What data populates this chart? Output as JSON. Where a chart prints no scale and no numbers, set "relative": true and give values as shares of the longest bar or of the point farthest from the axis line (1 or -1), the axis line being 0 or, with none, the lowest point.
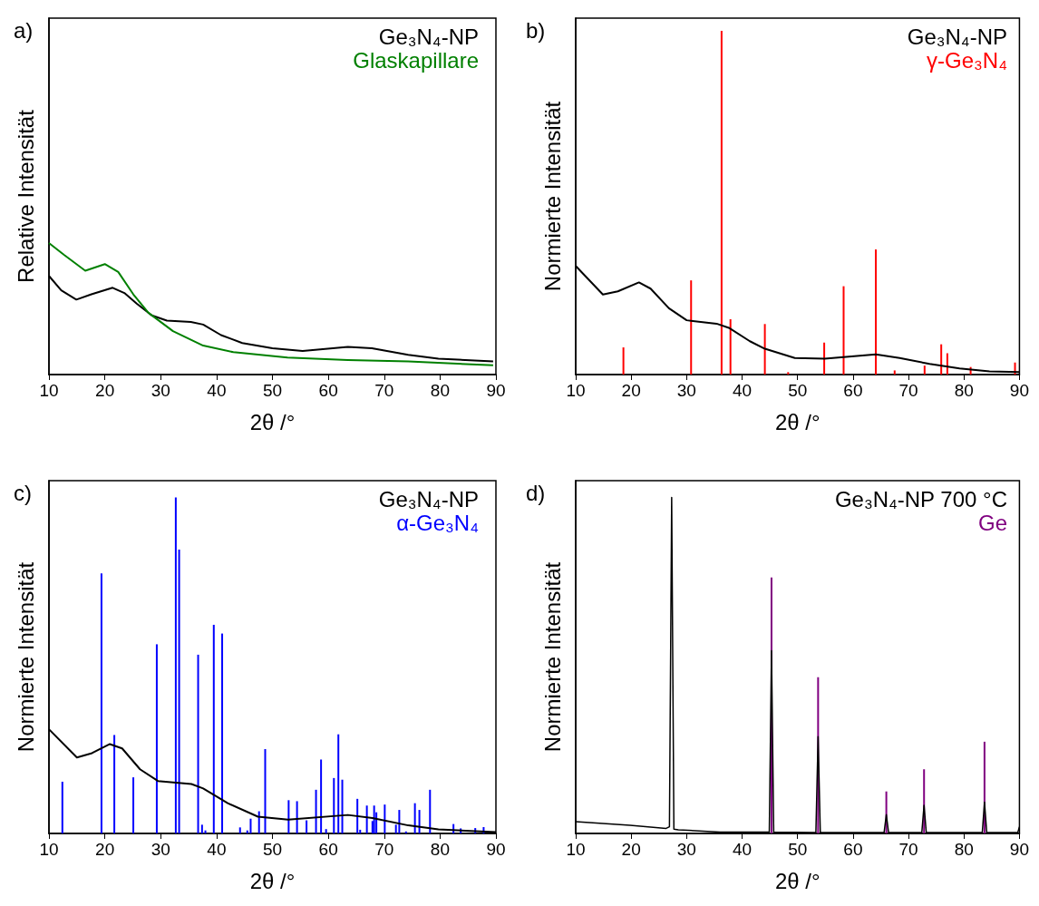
{
  "chart_data": [
    {
      "type": "line",
      "title": "a)",
      "xlabel": "2θ /°",
      "ylabel": "Relative Intensität",
      "xlim": [
        10,
        90
      ],
      "xticks": [
        10,
        20,
        30,
        40,
        50,
        60,
        70,
        80,
        90
      ],
      "relative": true,
      "legend": "top right",
      "series": [
        {
          "name": "Ge₃N₄-NP",
          "color": "#000000",
          "x": [
            10,
            12.2,
            14.9,
            17.6,
            21.4,
            23.5,
            25.7,
            28.4,
            31.1,
            35.4,
            37.6,
            40.8,
            44.6,
            50,
            55.4,
            63.5,
            67.8,
            74.3,
            79.7,
            89.5
          ],
          "values": [
            0.75,
            0.64,
            0.57,
            0.61,
            0.66,
            0.62,
            0.54,
            0.45,
            0.41,
            0.4,
            0.38,
            0.3,
            0.24,
            0.2,
            0.18,
            0.21,
            0.2,
            0.15,
            0.12,
            0.1
          ]
        },
        {
          "name": "Glaskapillare",
          "color": "#008000",
          "x": [
            10,
            12.7,
            16.5,
            20,
            22.4,
            25.1,
            27.8,
            32.2,
            37.6,
            43,
            52.7,
            63.5,
            74.3,
            89.5
          ],
          "values": [
            1,
            0.91,
            0.79,
            0.84,
            0.78,
            0.61,
            0.47,
            0.33,
            0.22,
            0.17,
            0.13,
            0.11,
            0.1,
            0.07
          ]
        }
      ]
    },
    {
      "type": "line",
      "title": "b)",
      "xlabel": "2θ /°",
      "ylabel": "Normierte Intensität",
      "xlim": [
        10,
        90
      ],
      "xticks": [
        10,
        20,
        30,
        40,
        50,
        60,
        70,
        80,
        90
      ],
      "relative": true,
      "legend": "top right",
      "series": [
        {
          "name": "Ge₃N₄-NP",
          "color": "#000000",
          "x": [
            10,
            14.9,
            17.6,
            21.4,
            23.5,
            26.8,
            30,
            35.4,
            37.6,
            41.4,
            44.1,
            49.5,
            54.9,
            64.1,
            68.4,
            73.8,
            79.2,
            84.6,
            90
          ],
          "values": [
            0.316,
            0.233,
            0.242,
            0.268,
            0.25,
            0.193,
            0.158,
            0.148,
            0.136,
            0.097,
            0.075,
            0.048,
            0.046,
            0.059,
            0.048,
            0.031,
            0.018,
            0.009,
            0.007
          ]
        },
        {
          "name": "γ-Ge₃N₄",
          "type": "bar",
          "color": "#ff0000",
          "x": [
            18.6,
            30.8,
            36.3,
            37.9,
            44.1,
            48.3,
            54.8,
            58.3,
            64.1,
            67.5,
            72.9,
            75.9,
            77.0,
            81.2,
            89.2
          ],
          "values": [
            0.079,
            0.274,
            1,
            0.161,
            0.147,
            0.007,
            0.093,
            0.257,
            0.364,
            0.012,
            0.026,
            0.088,
            0.062,
            0.022,
            0.035
          ]
        }
      ]
    },
    {
      "type": "line",
      "title": "c)",
      "xlabel": "2θ /°",
      "ylabel": "Normierte Intensität",
      "xlim": [
        10,
        90
      ],
      "xticks": [
        10,
        20,
        30,
        40,
        50,
        60,
        70,
        80,
        90
      ],
      "relative": true,
      "legend": "top right",
      "series": [
        {
          "name": "Ge₃N₄-NP",
          "color": "#000000",
          "x": [
            10,
            15,
            17.7,
            20.9,
            23.1,
            26.3,
            29.5,
            35.5,
            37.6,
            42,
            47.4,
            52.8,
            63.5,
            67.9,
            74.3,
            79.7,
            90
          ],
          "values": [
            0.31,
            0.226,
            0.239,
            0.266,
            0.253,
            0.191,
            0.156,
            0.147,
            0.134,
            0.09,
            0.05,
            0.041,
            0.055,
            0.046,
            0.024,
            0.012,
            0.004
          ]
        },
        {
          "name": "α-Ge₃N₄",
          "type": "bar",
          "color": "#0000ff",
          "x": [
            12.4,
            19.4,
            21.7,
            25.1,
            29.3,
            32.7,
            33.3,
            36.7,
            37.4,
            38.0,
            39.5,
            41.0,
            44.2,
            45.5,
            46.1,
            47.6,
            48.7,
            52.9,
            54.4,
            56.1,
            57.8,
            58.7,
            59.6,
            61.0,
            61.8,
            62.5,
            65.2,
            65.7,
            66.9,
            67.9,
            68.2,
            68.6,
            70.1,
            72.1,
            72.7,
            73.9,
            75.5,
            76.3,
            78.2,
            82.4,
            83.7,
            86.3,
            87.8
          ],
          "values": [
            0.154,
            0.774,
            0.293,
            0.167,
            0.563,
            1,
            0.845,
            0.532,
            0.026,
            0.009,
            0.621,
            0.595,
            0.018,
            0.009,
            0.044,
            0.066,
            0.251,
            0.099,
            0.096,
            0.039,
            0.13,
            0.22,
            0.013,
            0.165,
            0.295,
            0.16,
            0.103,
            0.011,
            0.083,
            0.037,
            0.083,
            0.063,
            0.086,
            0.026,
            0.07,
            0.006,
            0.09,
            0.07,
            0.13,
            0.028,
            0.015,
            0.016,
            0.019
          ]
        }
      ]
    },
    {
      "type": "line",
      "title": "d)",
      "xlabel": "2θ /°",
      "ylabel": "Normierte Intensität",
      "xlim": [
        10,
        90
      ],
      "xticks": [
        10,
        20,
        30,
        40,
        50,
        60,
        70,
        80,
        90
      ],
      "relative": true,
      "legend": "top right",
      "series": [
        {
          "name": "Ge",
          "type": "bar",
          "color": "#800080",
          "x": [
            45.3,
            53.7,
            66.0,
            72.8,
            83.7
          ],
          "values": [
            0.762,
            0.465,
            0.125,
            0.191,
            0.273
          ]
        },
        {
          "name": "Ge₃N₄-NP 700 °C",
          "color": "#000000",
          "x": [
            10,
            19.8,
            26.3,
            26.9,
            27.3,
            27.7,
            28.5,
            36,
            44.9,
            45.3,
            45.7,
            53.3,
            53.7,
            54.1,
            65.6,
            66.0,
            66.4,
            72.4,
            72.8,
            73.2,
            83.3,
            83.7,
            84.1,
            89.7,
            90
          ],
          "values": [
            0.035,
            0.024,
            0.015,
            0.02,
            1,
            0.013,
            0.011,
            0.004,
            0.004,
            0.544,
            0.004,
            0.003,
            0.288,
            0.003,
            0.003,
            0.056,
            0.003,
            0.003,
            0.084,
            0.003,
            0.003,
            0.093,
            0.003,
            0.003,
            0.02
          ]
        }
      ]
    }
  ]
}
